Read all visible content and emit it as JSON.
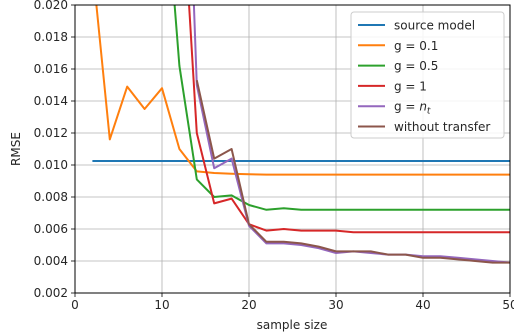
{
  "chart_data": {
    "type": "line",
    "xlabel": "sample size",
    "ylabel": "RMSE",
    "xlim": [
      0,
      50
    ],
    "ylim": [
      0.002,
      0.02
    ],
    "grid": true,
    "legend_position": "top-right",
    "x_ticks": [
      {
        "value": 0,
        "label": "0"
      },
      {
        "value": 10,
        "label": "10"
      },
      {
        "value": 20,
        "label": "20"
      },
      {
        "value": 30,
        "label": "30"
      },
      {
        "value": 40,
        "label": "40"
      },
      {
        "value": 50,
        "label": "50"
      }
    ],
    "y_ticks": [
      {
        "value": 0.002,
        "label": "0.002"
      },
      {
        "value": 0.004,
        "label": "0.004"
      },
      {
        "value": 0.006,
        "label": "0.006"
      },
      {
        "value": 0.008,
        "label": "0.008"
      },
      {
        "value": 0.01,
        "label": "0.010"
      },
      {
        "value": 0.012,
        "label": "0.012"
      },
      {
        "value": 0.014,
        "label": "0.014"
      },
      {
        "value": 0.016,
        "label": "0.016"
      },
      {
        "value": 0.018,
        "label": "0.018"
      },
      {
        "value": 0.02,
        "label": "0.020"
      }
    ],
    "series": [
      {
        "name": "source model",
        "label_parts": [
          {
            "text": "source model",
            "italic": false
          }
        ],
        "color": "#1f77b4",
        "x": [
          2,
          50
        ],
        "y": [
          0.01025,
          0.01025
        ]
      },
      {
        "name": "g = 0.1",
        "label_parts": [
          {
            "text": "g = 0.1",
            "italic": false
          }
        ],
        "color": "#ff7f0e",
        "x": [
          2,
          4,
          6,
          8,
          10,
          12,
          14,
          16,
          18,
          20,
          22,
          24,
          26,
          28,
          30,
          32,
          34,
          36,
          38,
          40,
          42,
          44,
          46,
          48,
          50
        ],
        "y": [
          0.0225,
          0.0116,
          0.0149,
          0.0135,
          0.0148,
          0.011,
          0.0096,
          0.0095,
          0.00945,
          0.00942,
          0.0094,
          0.0094,
          0.0094,
          0.0094,
          0.0094,
          0.0094,
          0.0094,
          0.0094,
          0.0094,
          0.0094,
          0.0094,
          0.0094,
          0.0094,
          0.0094,
          0.0094
        ]
      },
      {
        "name": "g = 0.5",
        "label_parts": [
          {
            "text": "g = 0.5",
            "italic": false
          }
        ],
        "color": "#2ca02c",
        "x": [
          10,
          12,
          14,
          16,
          18,
          20,
          22,
          24,
          26,
          28,
          30,
          32,
          34,
          36,
          38,
          40,
          42,
          44,
          46,
          48,
          50
        ],
        "y": [
          0.03,
          0.0162,
          0.0091,
          0.008,
          0.0081,
          0.0075,
          0.0072,
          0.0073,
          0.0072,
          0.0072,
          0.0072,
          0.0072,
          0.0072,
          0.0072,
          0.0072,
          0.0072,
          0.0072,
          0.0072,
          0.0072,
          0.0072,
          0.0072
        ]
      },
      {
        "name": "g = 1",
        "label_parts": [
          {
            "text": "g = 1",
            "italic": false
          }
        ],
        "color": "#d62728",
        "x": [
          12,
          14,
          16,
          18,
          20,
          22,
          24,
          26,
          28,
          30,
          32,
          34,
          36,
          38,
          40,
          42,
          44,
          46,
          48,
          50
        ],
        "y": [
          0.03,
          0.012,
          0.0076,
          0.0079,
          0.0063,
          0.0059,
          0.006,
          0.0059,
          0.0059,
          0.0059,
          0.0058,
          0.0058,
          0.0058,
          0.0058,
          0.0058,
          0.0058,
          0.0058,
          0.0058,
          0.0058,
          0.0058
        ]
      },
      {
        "name": "g = n_t",
        "label_parts": [
          {
            "text": "g = ",
            "italic": false
          },
          {
            "text": "n",
            "italic": true
          },
          {
            "text": "t",
            "italic": true,
            "sub": true
          }
        ],
        "color": "#9467bd",
        "x": [
          13,
          14,
          16,
          18,
          20,
          22,
          24,
          26,
          28,
          30,
          32,
          34,
          36,
          38,
          40,
          42,
          44,
          46,
          48,
          50
        ],
        "y": [
          0.03,
          0.015,
          0.0098,
          0.0104,
          0.0062,
          0.0051,
          0.0051,
          0.005,
          0.0048,
          0.0045,
          0.0046,
          0.0045,
          0.0044,
          0.0044,
          0.0043,
          0.0043,
          0.0042,
          0.0041,
          0.004,
          0.0039
        ]
      },
      {
        "name": "without transfer",
        "label_parts": [
          {
            "text": "without transfer",
            "italic": false
          }
        ],
        "color": "#8c564b",
        "x": [
          14,
          16,
          18,
          20,
          22,
          24,
          26,
          28,
          30,
          32,
          34,
          36,
          38,
          40,
          42,
          44,
          46,
          48,
          50
        ],
        "y": [
          0.0153,
          0.0104,
          0.011,
          0.0063,
          0.0052,
          0.0052,
          0.0051,
          0.0049,
          0.0046,
          0.0046,
          0.0046,
          0.0044,
          0.0044,
          0.0042,
          0.0042,
          0.0041,
          0.004,
          0.0039,
          0.0039
        ]
      }
    ]
  }
}
